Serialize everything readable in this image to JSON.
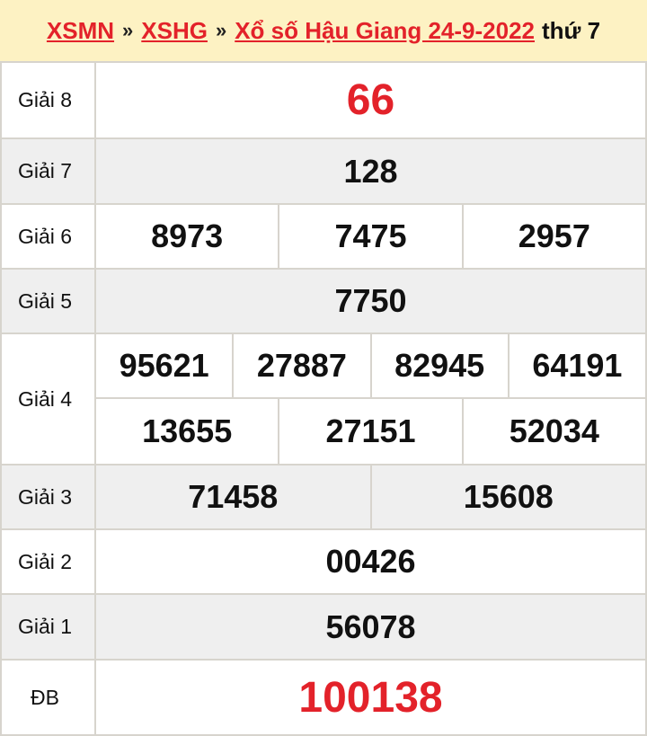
{
  "header": {
    "links": [
      "XSMN",
      "XSHG",
      "Xổ số Hậu Giang 24-9-2022"
    ],
    "separator": "»",
    "day": "thứ 7"
  },
  "colors": {
    "accent": "#e3222a",
    "header_bg": "#fdf2c3"
  },
  "prizes": [
    {
      "label": "Giải 8",
      "numbers": [
        "66"
      ]
    },
    {
      "label": "Giải 7",
      "numbers": [
        "128"
      ]
    },
    {
      "label": "Giải 6",
      "numbers": [
        "8973",
        "7475",
        "2957"
      ]
    },
    {
      "label": "Giải 5",
      "numbers": [
        "7750"
      ]
    },
    {
      "label": "Giải 4",
      "numbers": [
        "95621",
        "27887",
        "82945",
        "64191",
        "13655",
        "27151",
        "52034"
      ]
    },
    {
      "label": "Giải 3",
      "numbers": [
        "71458",
        "15608"
      ]
    },
    {
      "label": "Giải 2",
      "numbers": [
        "00426"
      ]
    },
    {
      "label": "Giải 1",
      "numbers": [
        "56078"
      ]
    },
    {
      "label": "ĐB",
      "numbers": [
        "100138"
      ]
    }
  ]
}
